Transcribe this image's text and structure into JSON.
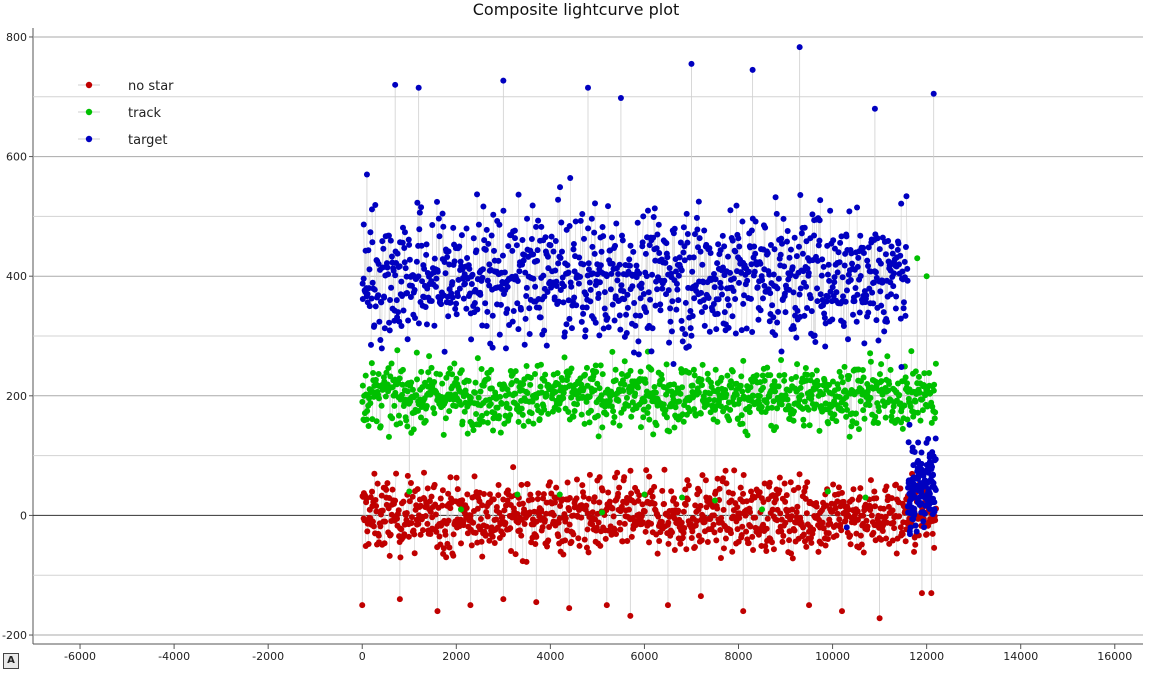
{
  "chart_data": {
    "type": "scatter",
    "title": "Composite lightcurve plot",
    "xlabel": "",
    "ylabel": "",
    "xlim": [
      -7000,
      16600
    ],
    "ylim": [
      -215,
      815
    ],
    "xticks": [
      -6000,
      -4000,
      -2000,
      0,
      2000,
      4000,
      6000,
      8000,
      10000,
      12000,
      14000,
      16000
    ],
    "yticks": [
      -200,
      0,
      200,
      400,
      600,
      800
    ],
    "grid": true,
    "legend_position": "top-left",
    "series": [
      {
        "name": "no star",
        "color": "#c00000",
        "x_range": [
          0,
          12200
        ],
        "band_center": 0,
        "band_spread": 105,
        "outlier_range": [
          -170,
          110
        ],
        "points": [
          [
            0,
            -150
          ],
          [
            800,
            -140
          ],
          [
            1600,
            -160
          ],
          [
            2300,
            -150
          ],
          [
            3000,
            -140
          ],
          [
            3700,
            -145
          ],
          [
            4400,
            -155
          ],
          [
            5200,
            -150
          ],
          [
            5700,
            -168
          ],
          [
            6500,
            -150
          ],
          [
            7200,
            -135
          ],
          [
            8100,
            -160
          ],
          [
            9500,
            -150
          ],
          [
            10200,
            -160
          ],
          [
            11000,
            -172
          ],
          [
            11900,
            -130
          ],
          [
            12100,
            -130
          ]
        ]
      },
      {
        "name": "track",
        "color": "#00c000",
        "x_range": [
          0,
          12200
        ],
        "band_center": 200,
        "band_spread": 90,
        "outlier_range": [
          5,
          450
        ],
        "points": [
          [
            1000,
            40
          ],
          [
            2100,
            10
          ],
          [
            3300,
            35
          ],
          [
            4200,
            35
          ],
          [
            5100,
            5
          ],
          [
            6000,
            35
          ],
          [
            6800,
            30
          ],
          [
            7500,
            25
          ],
          [
            8500,
            10
          ],
          [
            9900,
            40
          ],
          [
            10700,
            30
          ],
          [
            11800,
            430
          ],
          [
            12000,
            400
          ]
        ]
      },
      {
        "name": "target",
        "color": "#0000c0",
        "x_range": [
          0,
          11600
        ],
        "band_center": 400,
        "band_spread": 190,
        "outlier_range": [
          -20,
          785
        ],
        "extra_cluster": {
          "x_range": [
            11600,
            12200
          ],
          "center": 50,
          "spread": 120
        },
        "points": [
          [
            100,
            570
          ],
          [
            700,
            720
          ],
          [
            1200,
            715
          ],
          [
            3000,
            727
          ],
          [
            4800,
            715
          ],
          [
            5500,
            698
          ],
          [
            7000,
            755
          ],
          [
            8300,
            745
          ],
          [
            9300,
            783
          ],
          [
            10300,
            -20
          ],
          [
            10900,
            680
          ],
          [
            12150,
            705
          ]
        ]
      }
    ]
  },
  "footer": {
    "auto_badge": "A"
  }
}
